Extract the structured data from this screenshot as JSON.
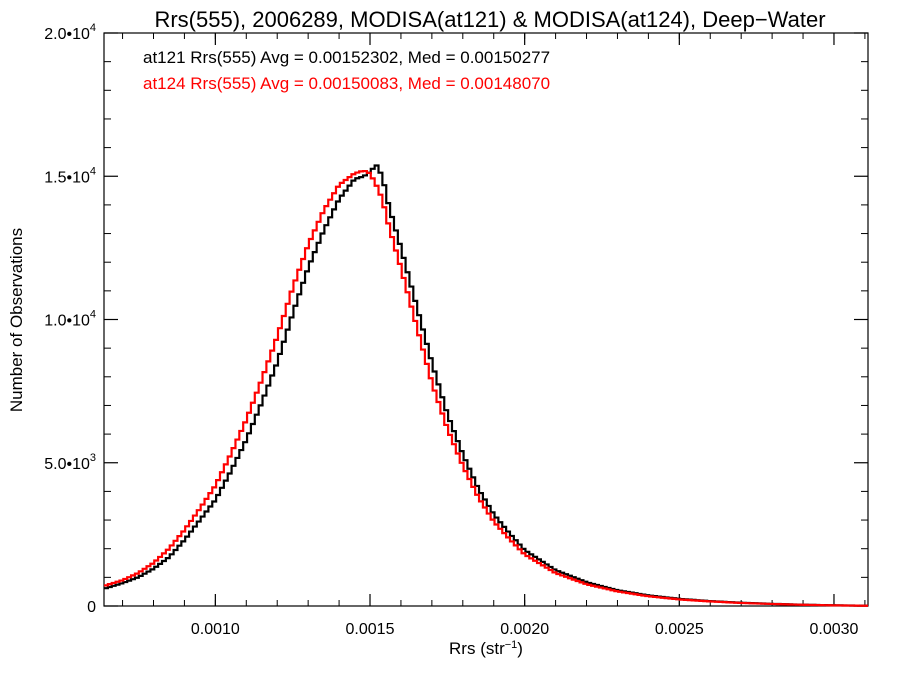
{
  "chart_data": {
    "type": "line",
    "title": "Rrs(555), 2006289, MODISA(at121) & MODISA(at124), Deep−Water",
    "xlabel": "Rrs (str",
    "xlabel_sup": "−1",
    "xlabel_close": ")",
    "ylabel": "Number of Observations",
    "xlim": [
      0.00064,
      0.00311
    ],
    "ylim": [
      0,
      20000
    ],
    "grid": false,
    "step_plot": true,
    "x_ticks": [
      {
        "value": 0.001,
        "label": "0.0010"
      },
      {
        "value": 0.0015,
        "label": "0.0015"
      },
      {
        "value": 0.002,
        "label": "0.0020"
      },
      {
        "value": 0.0025,
        "label": "0.0025"
      },
      {
        "value": 0.003,
        "label": "0.0030"
      }
    ],
    "y_ticks": [
      {
        "value": 0,
        "base": "0",
        "exp": ""
      },
      {
        "value": 5000,
        "base": "5.0•10",
        "exp": "3"
      },
      {
        "value": 10000,
        "base": "1.0•10",
        "exp": "4"
      },
      {
        "value": 15000,
        "base": "1.5•10",
        "exp": "4"
      },
      {
        "value": 20000,
        "base": "2.0•10",
        "exp": "4"
      }
    ],
    "annotations": [
      {
        "text": "at121 Rrs(555) Avg = 0.00152302, Med = 0.00150277",
        "color": "#000000"
      },
      {
        "text": "at124 Rrs(555) Avg = 0.00150083, Med = 0.00148070",
        "color": "#ff0000"
      }
    ],
    "series": [
      {
        "color": "#000000",
        "x": [
          0.00064,
          0.0007,
          0.00075,
          0.0008,
          0.00085,
          0.0009,
          0.00095,
          0.001,
          0.00105,
          0.0011,
          0.00115,
          0.0012,
          0.00125,
          0.0013,
          0.00135,
          0.0014,
          0.00145,
          0.00148,
          0.0015,
          0.00152,
          0.00154,
          0.00156,
          0.0016,
          0.00165,
          0.0017,
          0.00175,
          0.0018,
          0.00185,
          0.0019,
          0.00195,
          0.002,
          0.0021,
          0.0022,
          0.0023,
          0.0024,
          0.0025,
          0.0026,
          0.0027,
          0.0028,
          0.0029,
          0.003,
          0.00311
        ],
        "y": [
          600,
          800,
          1000,
          1300,
          1700,
          2300,
          3000,
          3700,
          4700,
          5800,
          7100,
          8500,
          10200,
          11800,
          13100,
          14200,
          14900,
          15000,
          15150,
          15400,
          15000,
          14000,
          12500,
          10500,
          8500,
          6700,
          5300,
          4100,
          3200,
          2550,
          1950,
          1250,
          830,
          550,
          370,
          250,
          170,
          115,
          75,
          45,
          25,
          10
        ]
      },
      {
        "color": "#ff0000",
        "x": [
          0.00064,
          0.0007,
          0.00075,
          0.0008,
          0.00085,
          0.0009,
          0.00095,
          0.001,
          0.00105,
          0.0011,
          0.00115,
          0.0012,
          0.00125,
          0.0013,
          0.00135,
          0.0014,
          0.00145,
          0.00148,
          0.0015,
          0.00152,
          0.00154,
          0.00156,
          0.0016,
          0.00165,
          0.0017,
          0.00175,
          0.0018,
          0.00185,
          0.0019,
          0.00195,
          0.002,
          0.0021,
          0.0022,
          0.0023,
          0.0024,
          0.0025,
          0.0026,
          0.0027,
          0.0028,
          0.0029,
          0.003,
          0.00311
        ],
        "y": [
          700,
          900,
          1150,
          1500,
          2000,
          2650,
          3400,
          4200,
          5300,
          6500,
          7900,
          9400,
          11100,
          12600,
          13800,
          14700,
          15100,
          15200,
          15100,
          14700,
          14200,
          13300,
          11800,
          9800,
          7800,
          6200,
          4900,
          3800,
          2950,
          2350,
          1800,
          1150,
          760,
          510,
          340,
          230,
          160,
          105,
          70,
          42,
          22,
          8
        ]
      }
    ]
  }
}
